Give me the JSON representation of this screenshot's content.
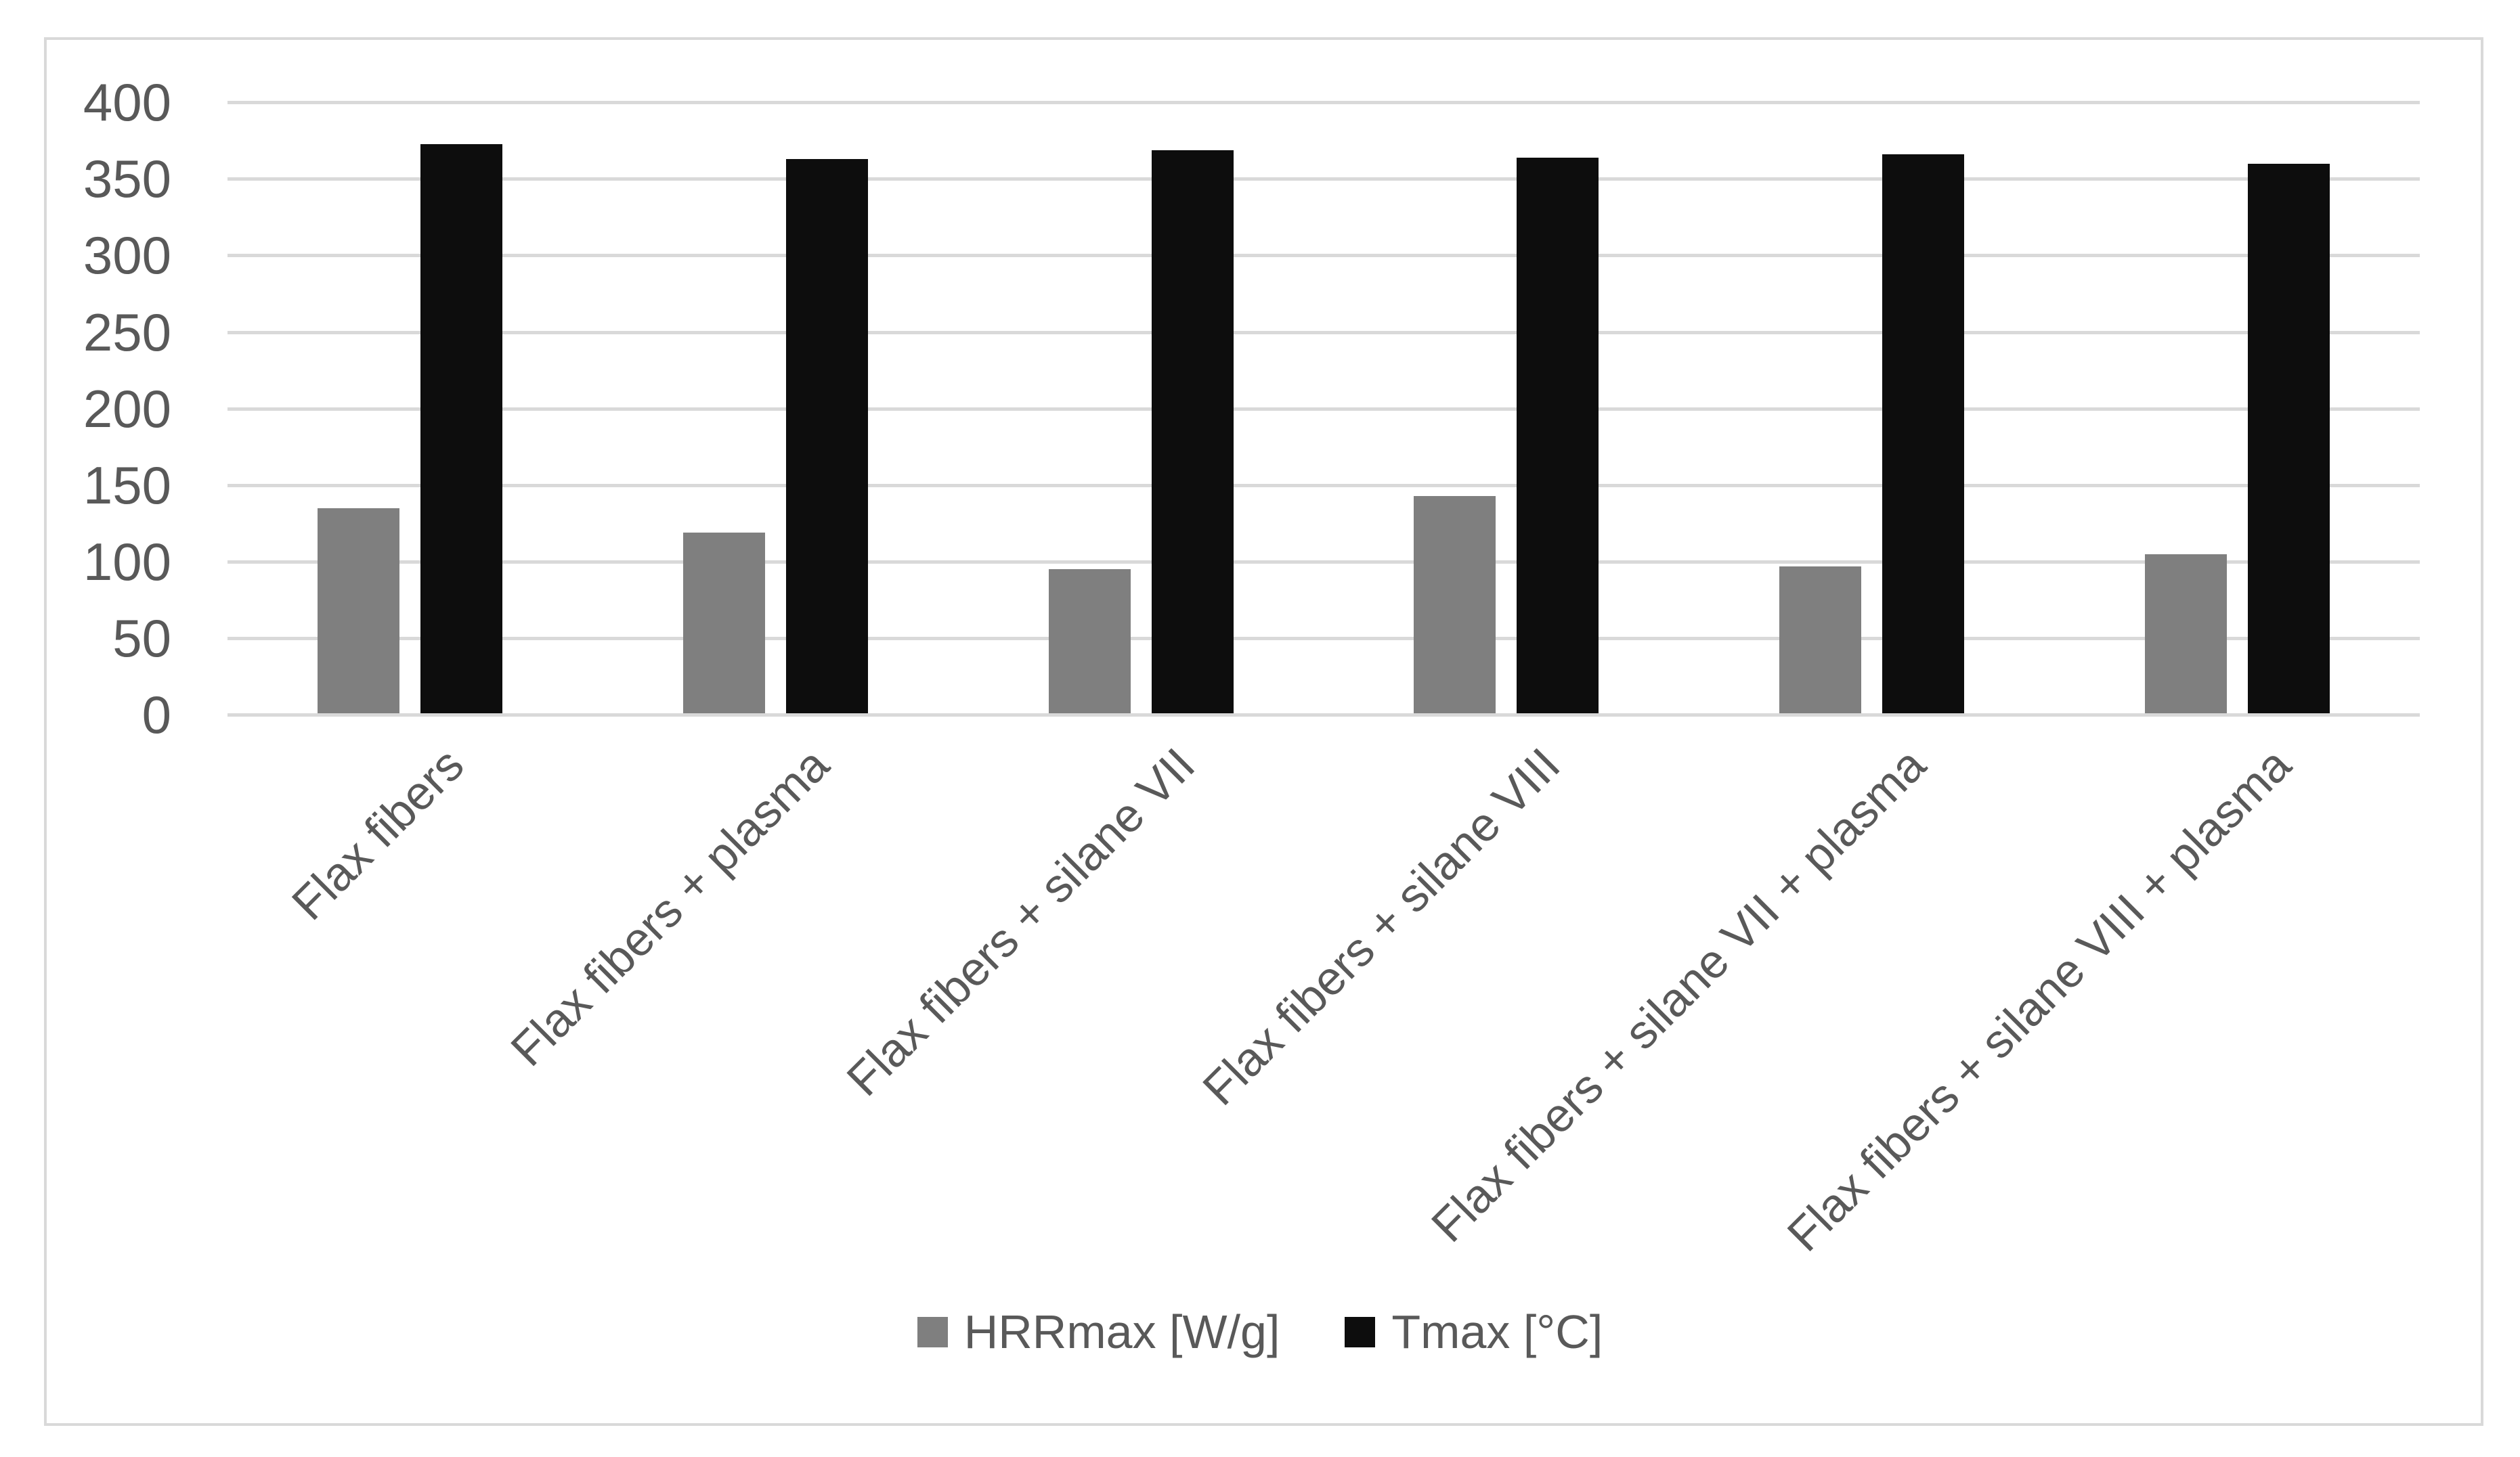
{
  "chart_data": {
    "type": "bar",
    "title": "",
    "xlabel": "",
    "ylabel": "",
    "categories": [
      "Flax fibers",
      "Flax fibers + plasma",
      "Flax fibers + silane VII",
      "Flax fibers + silane VIII",
      "Flax fibers + silane VII + plasma",
      "Flax fibers + silane VIII + plasma"
    ],
    "series": [
      {
        "name": "HRRmax [W/g]",
        "color": "#7f7f7f",
        "values": [
          134,
          118,
          94,
          142,
          96,
          104
        ]
      },
      {
        "name": "Tmax [°C]",
        "color": "#0d0d0d",
        "values": [
          372,
          362,
          368,
          363,
          365,
          359
        ]
      }
    ],
    "ylim": [
      0,
      400
    ],
    "ytick_step": 50,
    "yticks": [
      "400",
      "350",
      "300",
      "250",
      "200",
      "150",
      "100",
      "50",
      "0"
    ],
    "grid": "horizontal",
    "legend_position": "bottom",
    "colors": {
      "gridline": "#d9d9d9",
      "frame_border": "#d9d9d9",
      "text": "#595959",
      "background": "#ffffff"
    }
  }
}
